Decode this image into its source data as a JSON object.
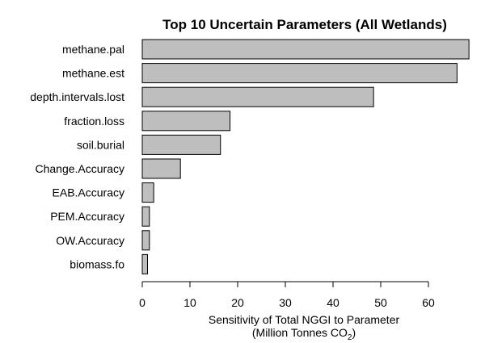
{
  "chart_data": {
    "type": "bar",
    "orientation": "horizontal",
    "title": "Top 10 Uncertain Parameters (All Wetlands)",
    "categories": [
      "methane.pal",
      "methane.est",
      "depth.intervals.lost",
      "fraction.loss",
      "soil.burial",
      "Change.Accuracy",
      "EAB.Accuracy",
      "PEM.Accuracy",
      "OW.Accuracy",
      "biomass.fo"
    ],
    "values": [
      68.5,
      66.0,
      48.5,
      18.4,
      16.4,
      8.0,
      2.4,
      1.5,
      1.5,
      1.1
    ],
    "xlabel_line1": "Sensitivity of Total NGGI to Parameter",
    "xlabel_line2_prefix": "(Million Tonnes CO",
    "xlabel_line2_sub": "2",
    "xlabel_line2_suffix": ")",
    "xticks": [
      "0",
      "10",
      "20",
      "30",
      "40",
      "50",
      "60"
    ],
    "xlim": [
      0,
      70
    ],
    "bar_color": "#bebebe",
    "grid": false,
    "legend": "none"
  }
}
